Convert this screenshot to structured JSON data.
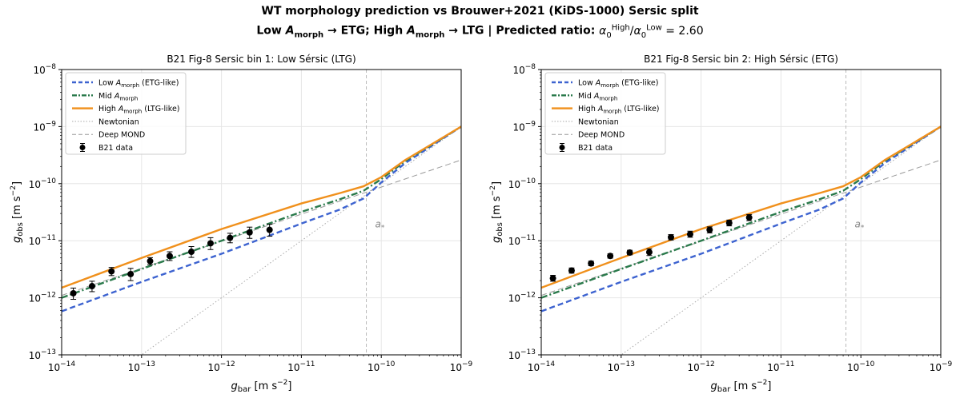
{
  "figure": {
    "title": "WT morphology prediction vs Brouwer+2021 (KiDS-1000) Sersic split",
    "subtitle": "Low A_morph → ETG; High A_morph → LTG  |  Predicted ratio: α0^High/α0^Low = 2.60",
    "subtitle_parts": {
      "low_label": "Low ",
      "sym_main": "A",
      "sym_sub": "morph",
      "arrow_etg": " → ETG; ",
      "high_label": "High ",
      "arrow_ltg": " → LTG  |  Predicted ratio: ",
      "alpha": "α",
      "zero": "0",
      "high_sup": "High",
      "slash": "/",
      "low_sup": "Low",
      "equals": " = 2.60"
    }
  },
  "axes_common": {
    "xlabel_main": "g",
    "xlabel_sub": "bar",
    "xlabel_unit": " [m s",
    "xlabel_exp": "−2",
    "xlabel_close": "]",
    "ylabel_main": "g",
    "ylabel_sub": "obs",
    "ylabel_unit": " [m s",
    "ylabel_exp": "−2",
    "ylabel_close": "]",
    "x_scale": "log",
    "y_scale": "log",
    "xlim": [
      1e-14,
      1e-09
    ],
    "ylim": [
      1e-13,
      1e-08
    ],
    "x_ticks": [
      {
        "base": "10",
        "exp": "−14"
      },
      {
        "base": "10",
        "exp": "−13"
      },
      {
        "base": "10",
        "exp": "−12"
      },
      {
        "base": "10",
        "exp": "−11"
      },
      {
        "base": "10",
        "exp": "−10"
      },
      {
        "base": "10",
        "exp": "−9"
      }
    ],
    "y_ticks": [
      {
        "base": "10",
        "exp": "−13"
      },
      {
        "base": "10",
        "exp": "−12"
      },
      {
        "base": "10",
        "exp": "−11"
      },
      {
        "base": "10",
        "exp": "−10"
      },
      {
        "base": "10",
        "exp": "−9"
      },
      {
        "base": "10",
        "exp": "−8"
      }
    ],
    "grid": true,
    "legend_position": "upper-left",
    "a_star_label": "a",
    "a_star_sub": "*",
    "a_star_x": 6.5e-11
  },
  "legend": [
    {
      "key": "low",
      "text_a": "Low ",
      "sym": "A",
      "sub": "morph",
      "text_b": " (ETG-like)",
      "color": "#3d63d0",
      "style": "dashed"
    },
    {
      "key": "mid",
      "text_a": "Mid ",
      "sym": "A",
      "sub": "morph",
      "text_b": "",
      "color": "#2a7a4b",
      "style": "dashdot"
    },
    {
      "key": "high",
      "text_a": "High ",
      "sym": "A",
      "sub": "morph",
      "text_b": " (LTG-like)",
      "color": "#f0901c",
      "style": "solid"
    },
    {
      "key": "newton",
      "text_a": "Newtonian",
      "sym": "",
      "sub": "",
      "text_b": "",
      "color": "#aaaaaa",
      "style": "dotted"
    },
    {
      "key": "mond",
      "text_a": "Deep MOND",
      "sym": "",
      "sub": "",
      "text_b": "",
      "color": "#999999",
      "style": "dashed"
    },
    {
      "key": "data",
      "text_a": "B21 data",
      "sym": "",
      "sub": "",
      "text_b": "",
      "color": "#000000",
      "style": "errorbar"
    }
  ],
  "chart_data": [
    {
      "type": "line",
      "title": "B21 Fig-8 Sersic bin 1: Low Sérsic (LTG)",
      "x_scale": "log",
      "y_scale": "log",
      "xlim": [
        1e-14,
        1e-09
      ],
      "ylim": [
        1e-13,
        1e-08
      ],
      "series": [
        {
          "name": "Low A_morph (ETG-like)",
          "x": [
            1e-14,
            1e-13,
            1e-12,
            1e-11,
            3e-11,
            6e-11,
            1e-10,
            2e-10,
            1e-09
          ],
          "y": [
            5.8e-13,
            1.9e-12,
            5.9e-12,
            2e-11,
            3.5e-11,
            5.5e-11,
            1.05e-10,
            2.3e-10,
            1e-09
          ]
        },
        {
          "name": "Mid A_morph",
          "x": [
            1e-14,
            1e-13,
            1e-12,
            1e-11,
            3e-11,
            6e-11,
            1e-10,
            2e-10,
            1e-09
          ],
          "y": [
            1e-12,
            3.2e-12,
            1e-11,
            3.2e-11,
            5.3e-11,
            7.5e-11,
            1.2e-10,
            2.5e-10,
            1e-09
          ]
        },
        {
          "name": "High A_morph (LTG-like)",
          "x": [
            1e-14,
            1e-13,
            1e-12,
            1e-11,
            3e-11,
            6e-11,
            1e-10,
            2e-10,
            1e-09
          ],
          "y": [
            1.5e-12,
            5e-12,
            1.6e-11,
            4.5e-11,
            6.8e-11,
            9e-11,
            1.3e-10,
            2.6e-10,
            1e-09
          ]
        },
        {
          "name": "Newtonian",
          "x": [
            1e-14,
            1e-09
          ],
          "y": [
            1e-14,
            1e-09
          ]
        },
        {
          "name": "Deep MOND",
          "x": [
            1e-14,
            1e-09
          ],
          "y": [
            1.1e-12,
            2.6e-10
          ]
        }
      ],
      "data_points": {
        "name": "B21 data",
        "x": [
          1.4e-14,
          2.4e-14,
          4.2e-14,
          7.3e-14,
          1.28e-13,
          2.25e-13,
          4.2e-13,
          7.3e-13,
          1.28e-12,
          2.25e-12,
          4e-12
        ],
        "y": [
          1.2e-12,
          1.6e-12,
          2.9e-12,
          2.6e-12,
          4.4e-12,
          5.4e-12,
          6.4e-12,
          9e-12,
          1.12e-11,
          1.4e-11,
          1.55e-11
        ],
        "yerr_low": [
          2.6e-13,
          3.2e-13,
          4.5e-13,
          6e-13,
          6e-13,
          9e-13,
          1.3e-12,
          2e-12,
          2e-12,
          3e-12,
          3.5e-12
        ],
        "yerr_high": [
          2.8e-13,
          3.5e-13,
          5e-13,
          6.8e-13,
          6.5e-13,
          1e-12,
          1.5e-12,
          2.3e-12,
          2.3e-12,
          3.3e-12,
          4e-12
        ]
      }
    },
    {
      "type": "line",
      "title": "B21 Fig-8 Sersic bin 2: High Sérsic (ETG)",
      "x_scale": "log",
      "y_scale": "log",
      "xlim": [
        1e-14,
        1e-09
      ],
      "ylim": [
        1e-13,
        1e-08
      ],
      "series": [
        {
          "name": "Low A_morph (ETG-like)",
          "x": [
            1e-14,
            1e-13,
            1e-12,
            1e-11,
            3e-11,
            6e-11,
            1e-10,
            2e-10,
            1e-09
          ],
          "y": [
            5.8e-13,
            1.9e-12,
            5.9e-12,
            2e-11,
            3.5e-11,
            5.5e-11,
            1.05e-10,
            2.3e-10,
            1e-09
          ]
        },
        {
          "name": "Mid A_morph",
          "x": [
            1e-14,
            1e-13,
            1e-12,
            1e-11,
            3e-11,
            6e-11,
            1e-10,
            2e-10,
            1e-09
          ],
          "y": [
            1e-12,
            3.2e-12,
            1e-11,
            3.2e-11,
            5.3e-11,
            7.5e-11,
            1.2e-10,
            2.5e-10,
            1e-09
          ]
        },
        {
          "name": "High A_morph (LTG-like)",
          "x": [
            1e-14,
            1e-13,
            1e-12,
            1e-11,
            3e-11,
            6e-11,
            1e-10,
            2e-10,
            1e-09
          ],
          "y": [
            1.5e-12,
            5e-12,
            1.6e-11,
            4.5e-11,
            6.8e-11,
            9e-11,
            1.3e-10,
            2.6e-10,
            1e-09
          ]
        },
        {
          "name": "Newtonian",
          "x": [
            1e-14,
            1e-09
          ],
          "y": [
            1e-14,
            1e-09
          ]
        },
        {
          "name": "Deep MOND",
          "x": [
            1e-14,
            1e-09
          ],
          "y": [
            1.1e-12,
            2.6e-10
          ]
        }
      ],
      "data_points": {
        "name": "B21 data",
        "x": [
          1.4e-14,
          2.4e-14,
          4.2e-14,
          7.3e-14,
          1.28e-13,
          2.25e-13,
          4.2e-13,
          7.3e-13,
          1.28e-12,
          2.25e-12,
          4e-12
        ],
        "y": [
          2.2e-12,
          3e-12,
          4e-12,
          5.4e-12,
          6.2e-12,
          6.3e-12,
          1.15e-11,
          1.3e-11,
          1.55e-11,
          2.05e-11,
          2.55e-11
        ],
        "yerr_low": [
          2.5e-13,
          3e-13,
          3.5e-13,
          4.5e-13,
          5.5e-13,
          8e-13,
          1.2e-12,
          1.5e-12,
          1.8e-12,
          2.3e-12,
          3e-12
        ],
        "yerr_high": [
          2.7e-13,
          3.3e-13,
          3.8e-13,
          5e-13,
          6e-13,
          9e-13,
          1.3e-12,
          1.7e-12,
          2e-12,
          2.5e-12,
          3.3e-12
        ]
      }
    }
  ]
}
